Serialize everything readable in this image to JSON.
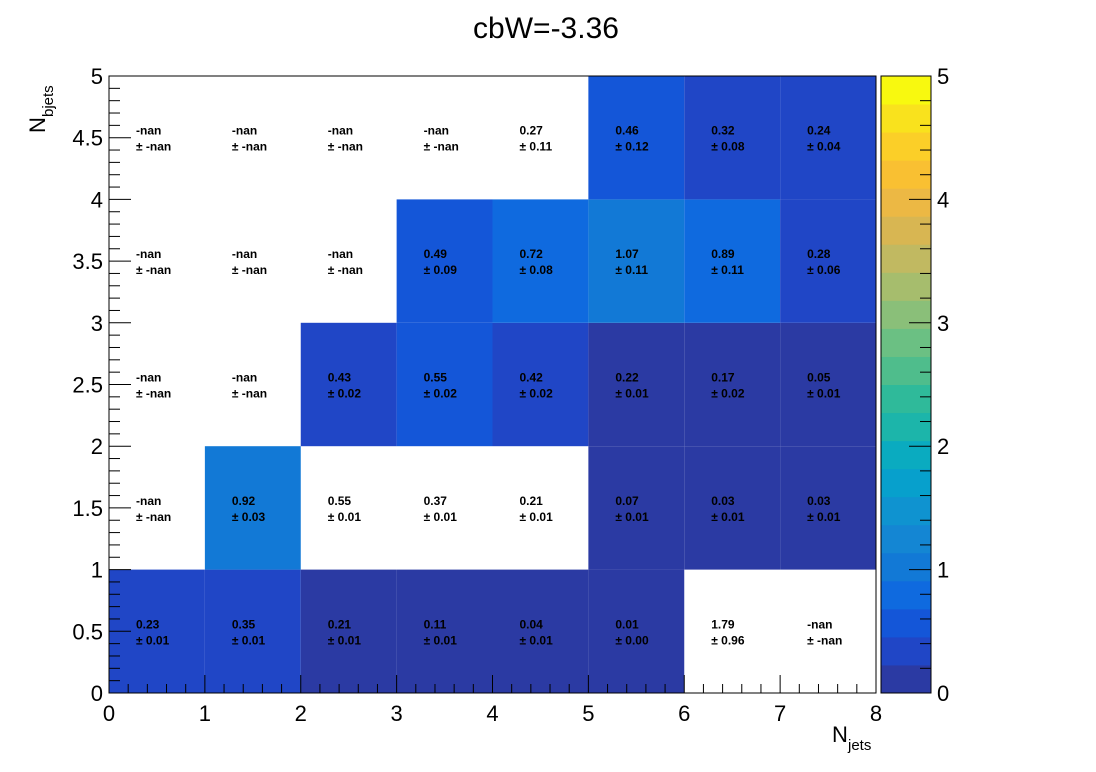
{
  "chart_data": {
    "type": "heatmap",
    "title": "cbW=-3.36",
    "xlabel": "N",
    "xlabel_sub": "jets",
    "ylabel": "N",
    "ylabel_sub": "bjets",
    "xlim": [
      0,
      8
    ],
    "ylim": [
      0,
      5
    ],
    "zlim": [
      0,
      5
    ],
    "x_ticks": [
      "0",
      "1",
      "2",
      "3",
      "4",
      "5",
      "6",
      "7",
      "8"
    ],
    "y_ticks": [
      "0",
      "0.5",
      "1",
      "1.5",
      "2",
      "2.5",
      "3",
      "3.5",
      "4",
      "4.5",
      "5"
    ],
    "z_ticks": [
      "0",
      "1",
      "2",
      "3",
      "4",
      "5"
    ],
    "colormap": [
      "#2b3aa3",
      "#2046c6",
      "#1456d8",
      "#0f6adf",
      "#1279d6",
      "#1486d3",
      "#0f93d0",
      "#07a0cc",
      "#0aabc0",
      "#1cb5aa",
      "#2fba9a",
      "#4fbd8c",
      "#6bc083",
      "#8abf79",
      "#a6bd6d",
      "#c1b961",
      "#d8b652",
      "#ecb844",
      "#f9c032",
      "#fbcf28",
      "#f9e21d",
      "#f8f90f"
    ],
    "cells": [
      {
        "x": 0,
        "y": 0,
        "value": 0.23,
        "label": "0.23",
        "error": "± 0.01"
      },
      {
        "x": 1,
        "y": 0,
        "value": 0.35,
        "label": "0.35",
        "error": "± 0.01"
      },
      {
        "x": 2,
        "y": 0,
        "value": 0.21,
        "label": "0.21",
        "error": "± 0.01"
      },
      {
        "x": 3,
        "y": 0,
        "value": 0.11,
        "label": "0.11",
        "error": "± 0.01"
      },
      {
        "x": 4,
        "y": 0,
        "value": 0.04,
        "label": "0.04",
        "error": "± 0.01"
      },
      {
        "x": 5,
        "y": 0,
        "value": 0.01,
        "label": "0.01",
        "error": "± 0.00"
      },
      {
        "x": 6,
        "y": 0,
        "value": 1.79,
        "label": "1.79",
        "error": "± 0.96",
        "empty": true
      },
      {
        "x": 7,
        "y": 0,
        "value": null,
        "label": "-nan",
        "error": "± -nan"
      },
      {
        "x": 0,
        "y": 1,
        "value": null,
        "label": "-nan",
        "error": "± -nan"
      },
      {
        "x": 1,
        "y": 1,
        "value": 0.92,
        "label": "0.92",
        "error": "± 0.03"
      },
      {
        "x": 2,
        "y": 1,
        "value": 0.55,
        "label": "0.55",
        "error": "± 0.01",
        "empty": true
      },
      {
        "x": 3,
        "y": 1,
        "value": 0.37,
        "label": "0.37",
        "error": "± 0.01",
        "empty": true
      },
      {
        "x": 4,
        "y": 1,
        "value": 0.21,
        "label": "0.21",
        "error": "± 0.01",
        "empty": true
      },
      {
        "x": 5,
        "y": 1,
        "value": 0.07,
        "label": "0.07",
        "error": "± 0.01"
      },
      {
        "x": 6,
        "y": 1,
        "value": 0.03,
        "label": "0.03",
        "error": "± 0.01"
      },
      {
        "x": 7,
        "y": 1,
        "value": 0.03,
        "label": "0.03",
        "error": "± 0.01"
      },
      {
        "x": 0,
        "y": 2,
        "value": null,
        "label": "-nan",
        "error": "± -nan"
      },
      {
        "x": 1,
        "y": 2,
        "value": null,
        "label": "-nan",
        "error": "± -nan"
      },
      {
        "x": 2,
        "y": 2,
        "value": 0.43,
        "label": "0.43",
        "error": "± 0.02"
      },
      {
        "x": 3,
        "y": 2,
        "value": 0.55,
        "label": "0.55",
        "error": "± 0.02"
      },
      {
        "x": 4,
        "y": 2,
        "value": 0.42,
        "label": "0.42",
        "error": "± 0.02"
      },
      {
        "x": 5,
        "y": 2,
        "value": 0.22,
        "label": "0.22",
        "error": "± 0.01"
      },
      {
        "x": 6,
        "y": 2,
        "value": 0.17,
        "label": "0.17",
        "error": "± 0.02"
      },
      {
        "x": 7,
        "y": 2,
        "value": 0.05,
        "label": "0.05",
        "error": "± 0.01"
      },
      {
        "x": 0,
        "y": 3,
        "value": null,
        "label": "-nan",
        "error": "± -nan"
      },
      {
        "x": 1,
        "y": 3,
        "value": null,
        "label": "-nan",
        "error": "± -nan"
      },
      {
        "x": 2,
        "y": 3,
        "value": null,
        "label": "-nan",
        "error": "± -nan"
      },
      {
        "x": 3,
        "y": 3,
        "value": 0.49,
        "label": "0.49",
        "error": "± 0.09"
      },
      {
        "x": 4,
        "y": 3,
        "value": 0.72,
        "label": "0.72",
        "error": "± 0.08"
      },
      {
        "x": 5,
        "y": 3,
        "value": 1.07,
        "label": "1.07",
        "error": "± 0.11"
      },
      {
        "x": 6,
        "y": 3,
        "value": 0.89,
        "label": "0.89",
        "error": "± 0.11"
      },
      {
        "x": 7,
        "y": 3,
        "value": 0.28,
        "label": "0.28",
        "error": "± 0.06"
      },
      {
        "x": 0,
        "y": 4,
        "value": null,
        "label": "-nan",
        "error": "± -nan"
      },
      {
        "x": 1,
        "y": 4,
        "value": null,
        "label": "-nan",
        "error": "± -nan"
      },
      {
        "x": 2,
        "y": 4,
        "value": null,
        "label": "-nan",
        "error": "± -nan"
      },
      {
        "x": 3,
        "y": 4,
        "value": null,
        "label": "-nan",
        "error": "± -nan"
      },
      {
        "x": 4,
        "y": 4,
        "value": 0.27,
        "label": "0.27",
        "error": "± 0.11",
        "empty": true
      },
      {
        "x": 5,
        "y": 4,
        "value": 0.46,
        "label": "0.46",
        "error": "± 0.12"
      },
      {
        "x": 6,
        "y": 4,
        "value": 0.32,
        "label": "0.32",
        "error": "± 0.08"
      },
      {
        "x": 7,
        "y": 4,
        "value": 0.24,
        "label": "0.24",
        "error": "± 0.04"
      }
    ]
  }
}
